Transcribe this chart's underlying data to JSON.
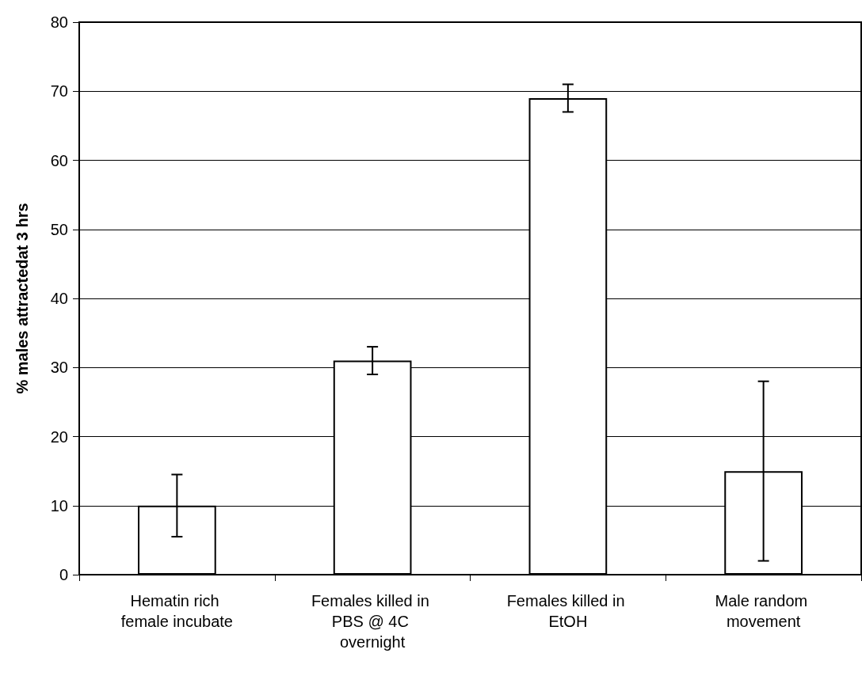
{
  "chart_data": {
    "type": "bar",
    "ylabel": "% males attractedat 3 hrs",
    "categories": [
      "Hematin rich female incubate",
      "Females killed in PBS @ 4C overnight",
      "Females killed in EtOH",
      "Male random movement"
    ],
    "values": [
      10,
      31,
      69,
      15
    ],
    "errors": [
      [
        5.5,
        14.5
      ],
      2,
      2,
      [
        2,
        28
      ]
    ],
    "color": "#ffffff",
    "ylim": [
      0,
      80
    ],
    "yticks": [
      0,
      10,
      20,
      30,
      40,
      50,
      60,
      70,
      80
    ],
    "grid": "y"
  }
}
